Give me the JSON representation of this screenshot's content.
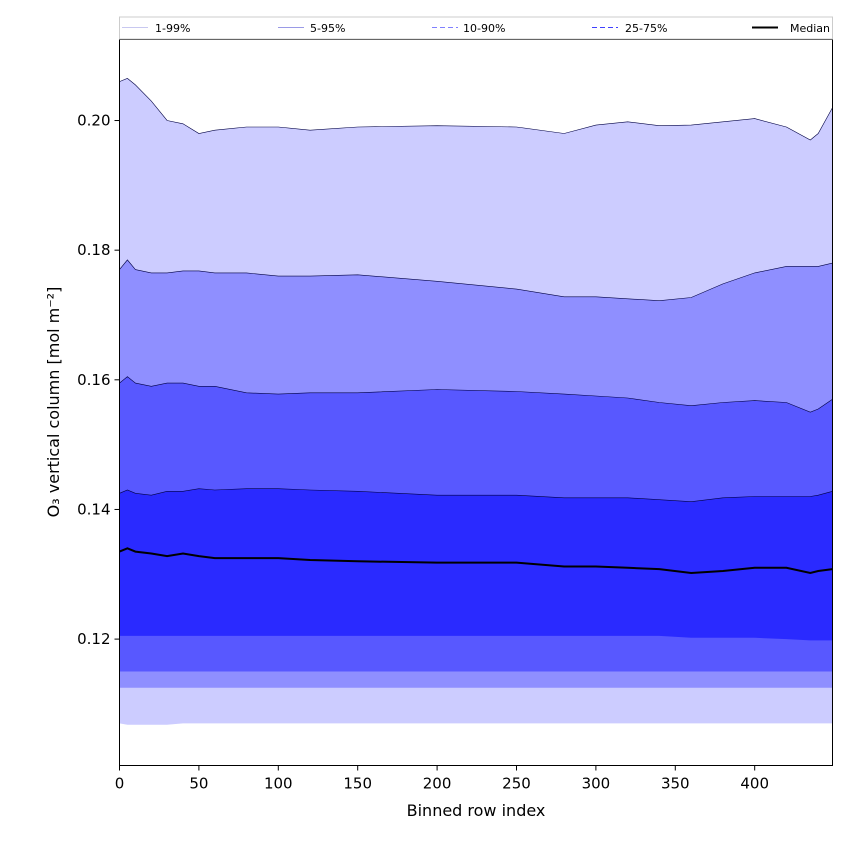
{
  "chart_data": {
    "type": "area",
    "xlabel": "Binned row index",
    "ylabel": "O₃ vertical column [mol m⁻²]",
    "xlim": [
      0,
      449
    ],
    "ylim": [
      0.1005,
      0.2125
    ],
    "xticks": [
      0,
      50,
      100,
      150,
      200,
      250,
      300,
      350,
      400
    ],
    "yticks": [
      0.12,
      0.14,
      0.16,
      0.18,
      0.2
    ],
    "ytick_labels": [
      "0.12",
      "0.14",
      "0.16",
      "0.18",
      "0.20"
    ],
    "grid": false,
    "legend_position": "top",
    "colors": {
      "band_1_99": "#ccccff",
      "band_5_95": "#8f8fff",
      "band_10_90": "#5858ff",
      "band_25_75": "#2a2aff",
      "median": "#000000"
    },
    "legend": [
      {
        "label": "1-99%",
        "style": "solid",
        "color": "#c8c8f0"
      },
      {
        "label": "5-95%",
        "style": "solid",
        "color": "#9a9ae6"
      },
      {
        "label": "10-90%",
        "style": "dashed",
        "color": "#8080ff"
      },
      {
        "label": "25-75%",
        "style": "dashed",
        "color": "#4040ff"
      },
      {
        "label": "Median",
        "style": "solid",
        "color": "#000000"
      }
    ],
    "x": [
      0,
      5,
      10,
      20,
      30,
      40,
      50,
      60,
      80,
      100,
      120,
      150,
      200,
      250,
      280,
      300,
      320,
      340,
      360,
      380,
      400,
      420,
      435,
      440,
      449
    ],
    "series": [
      {
        "name": "1-99%",
        "kind": "band",
        "lower": [
          0.107,
          0.1068,
          0.1068,
          0.1068,
          0.1068,
          0.107,
          0.107,
          0.107,
          0.107,
          0.107,
          0.107,
          0.107,
          0.107,
          0.107,
          0.107,
          0.107,
          0.107,
          0.107,
          0.107,
          0.107,
          0.107,
          0.107,
          0.107,
          0.107,
          0.107
        ],
        "upper": [
          0.206,
          0.2065,
          0.2055,
          0.203,
          0.2,
          0.1995,
          0.198,
          0.1985,
          0.199,
          0.199,
          0.1985,
          0.199,
          0.1992,
          0.199,
          0.198,
          0.1993,
          0.1998,
          0.1992,
          0.1993,
          0.1998,
          0.2003,
          0.199,
          0.197,
          0.198,
          0.202
        ]
      },
      {
        "name": "5-95%",
        "kind": "band",
        "lower": [
          0.1125,
          0.1125,
          0.1125,
          0.1125,
          0.1125,
          0.1125,
          0.1125,
          0.1125,
          0.1125,
          0.1125,
          0.1125,
          0.1125,
          0.1125,
          0.1125,
          0.1125,
          0.1125,
          0.1125,
          0.1125,
          0.1125,
          0.1125,
          0.1125,
          0.1125,
          0.1125,
          0.1125,
          0.1125
        ],
        "upper": [
          0.177,
          0.1785,
          0.177,
          0.1765,
          0.1765,
          0.1768,
          0.1768,
          0.1765,
          0.1765,
          0.176,
          0.176,
          0.1762,
          0.1752,
          0.174,
          0.1728,
          0.1728,
          0.1725,
          0.1722,
          0.1727,
          0.1748,
          0.1765,
          0.1775,
          0.1775,
          0.1775,
          0.178
        ]
      },
      {
        "name": "10-90%",
        "kind": "band",
        "lower": [
          0.115,
          0.115,
          0.115,
          0.115,
          0.115,
          0.115,
          0.115,
          0.115,
          0.115,
          0.115,
          0.115,
          0.115,
          0.115,
          0.115,
          0.115,
          0.115,
          0.115,
          0.115,
          0.115,
          0.115,
          0.115,
          0.115,
          0.115,
          0.115,
          0.115
        ],
        "upper": [
          0.1595,
          0.1605,
          0.1595,
          0.159,
          0.1595,
          0.1595,
          0.159,
          0.159,
          0.158,
          0.1578,
          0.158,
          0.158,
          0.1585,
          0.1582,
          0.1578,
          0.1575,
          0.1572,
          0.1565,
          0.156,
          0.1565,
          0.1568,
          0.1565,
          0.155,
          0.1555,
          0.157
        ]
      },
      {
        "name": "25-75%",
        "kind": "band",
        "lower": [
          0.1205,
          0.1205,
          0.1205,
          0.1205,
          0.1205,
          0.1205,
          0.1205,
          0.1205,
          0.1205,
          0.1205,
          0.1205,
          0.1205,
          0.1205,
          0.1205,
          0.1205,
          0.1205,
          0.1205,
          0.1205,
          0.1202,
          0.1202,
          0.1202,
          0.12,
          0.1198,
          0.1198,
          0.1198
        ],
        "upper": [
          0.1425,
          0.143,
          0.1425,
          0.1422,
          0.1428,
          0.1428,
          0.1432,
          0.143,
          0.1432,
          0.1432,
          0.143,
          0.1428,
          0.1422,
          0.1422,
          0.1418,
          0.1418,
          0.1418,
          0.1415,
          0.1412,
          0.1418,
          0.142,
          0.142,
          0.142,
          0.1422,
          0.1428
        ]
      },
      {
        "name": "Median",
        "kind": "line",
        "values": [
          0.1335,
          0.134,
          0.1335,
          0.1332,
          0.1328,
          0.1332,
          0.1328,
          0.1325,
          0.1325,
          0.1325,
          0.1322,
          0.132,
          0.1318,
          0.1318,
          0.1312,
          0.1312,
          0.131,
          0.1308,
          0.1302,
          0.1305,
          0.131,
          0.131,
          0.1302,
          0.1305,
          0.1308
        ]
      }
    ]
  }
}
